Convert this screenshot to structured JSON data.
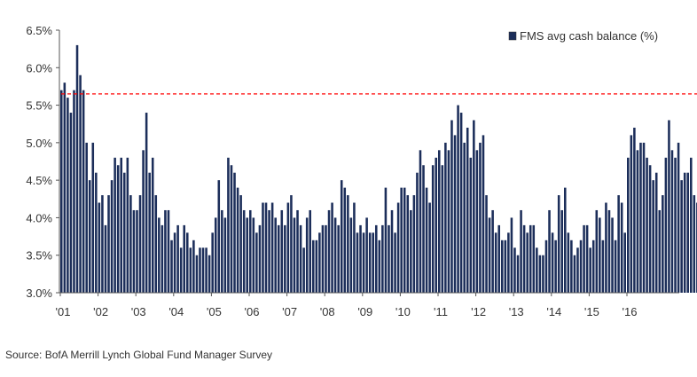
{
  "chart_data": {
    "type": "bar",
    "series": [
      {
        "name": "FMS avg cash balance (%)",
        "values": [
          5.7,
          5.8,
          5.6,
          5.4,
          5.7,
          6.3,
          5.9,
          5.7,
          5.0,
          4.5,
          5.0,
          4.6,
          4.2,
          4.3,
          3.9,
          4.3,
          4.5,
          4.8,
          4.7,
          4.8,
          4.6,
          4.8,
          4.3,
          4.1,
          4.1,
          4.3,
          4.9,
          5.4,
          4.6,
          4.8,
          4.3,
          4.0,
          3.9,
          4.1,
          4.1,
          3.7,
          3.8,
          3.9,
          3.6,
          3.9,
          3.8,
          3.6,
          3.7,
          3.5,
          3.6,
          3.6,
          3.6,
          3.5,
          3.8,
          4.0,
          4.5,
          4.1,
          4.0,
          4.8,
          4.7,
          4.6,
          4.4,
          4.3,
          4.1,
          4.0,
          4.1,
          4.0,
          3.8,
          3.9,
          4.2,
          4.2,
          4.1,
          4.2,
          4.0,
          3.9,
          4.1,
          3.9,
          4.2,
          4.3,
          4.0,
          4.1,
          3.9,
          3.6,
          4.0,
          4.1,
          3.7,
          3.7,
          3.8,
          3.9,
          3.9,
          4.1,
          4.2,
          4.0,
          3.9,
          4.5,
          4.4,
          4.3,
          4.0,
          4.2,
          3.8,
          3.9,
          3.8,
          4.0,
          3.8,
          3.8,
          3.9,
          3.7,
          3.9,
          4.4,
          3.9,
          4.1,
          3.8,
          4.2,
          4.4,
          4.4,
          4.3,
          4.1,
          4.3,
          4.6,
          4.9,
          4.7,
          4.4,
          4.2,
          4.7,
          4.8,
          4.9,
          4.7,
          5.0,
          4.9,
          5.3,
          5.1,
          5.5,
          5.4,
          5.0,
          5.2,
          4.8,
          5.3,
          4.9,
          5.0,
          5.1,
          4.3,
          4.0,
          4.1,
          3.8,
          3.9,
          3.7,
          3.7,
          3.8,
          4.0,
          3.6,
          3.5,
          4.1,
          3.9,
          3.8,
          3.9,
          3.9,
          3.6,
          3.5,
          3.5,
          3.7,
          4.1,
          3.8,
          3.7,
          4.3,
          4.1,
          4.4,
          3.8,
          3.7,
          3.5,
          3.6,
          3.7,
          3.9,
          3.9,
          3.6,
          3.7,
          4.1,
          4.0,
          3.7,
          4.2,
          4.1,
          4.0,
          3.7,
          4.3,
          4.2,
          3.8,
          4.8,
          5.1,
          5.2,
          4.9,
          5.0,
          5.0,
          4.8,
          4.7,
          4.5,
          4.6,
          4.1,
          4.3,
          4.8,
          5.3,
          4.9,
          4.8,
          5.0,
          4.5,
          4.6,
          4.6,
          4.8,
          4.3,
          4.2,
          4.1,
          4.1,
          4.3,
          3.8,
          4.1,
          3.8,
          3.9,
          3.8,
          3.8,
          4.1,
          4.2,
          4.1,
          4.0,
          4.6,
          4.4,
          4.6,
          4.5,
          4.6,
          4.5,
          4.5,
          4.7,
          4.6,
          4.4,
          4.5,
          4.5,
          4.8,
          4.5,
          4.6,
          4.5,
          4.9,
          4.7,
          4.6,
          4.9,
          5.0,
          4.6,
          4.5,
          4.7,
          4.8,
          4.6,
          4.5,
          4.5,
          4.6,
          4.5,
          4.9,
          5.5,
          5.0,
          5.3,
          5.5,
          5.2,
          4.9,
          5.1,
          5.2,
          5.4,
          5.2,
          4.9,
          5.0,
          5.2,
          5.4,
          5.6
        ]
      }
    ],
    "x_tick_labels": [
      "'01",
      "'02",
      "'03",
      "'04",
      "'05",
      "'06",
      "'07",
      "'08",
      "'09",
      "'10",
      "'11",
      "'12",
      "'13",
      "'14",
      "'15",
      "'16"
    ],
    "y_tick_labels": [
      "3.0%",
      "3.5%",
      "4.0%",
      "4.5%",
      "5.0%",
      "5.5%",
      "6.0%",
      "6.5%"
    ],
    "ylim": [
      3.0,
      6.5
    ],
    "reference_line": {
      "value": 5.65,
      "style": "dashed",
      "color": "#ff0000"
    },
    "highlight_circle": {
      "color": "#e8323c"
    },
    "legend": {
      "label": "FMS avg cash balance (%)",
      "position": "top-right"
    },
    "bar_color": "#1c2e5a",
    "grid": false
  },
  "source_text": "Source: BofA Merrill Lynch Global Fund Manager Survey"
}
